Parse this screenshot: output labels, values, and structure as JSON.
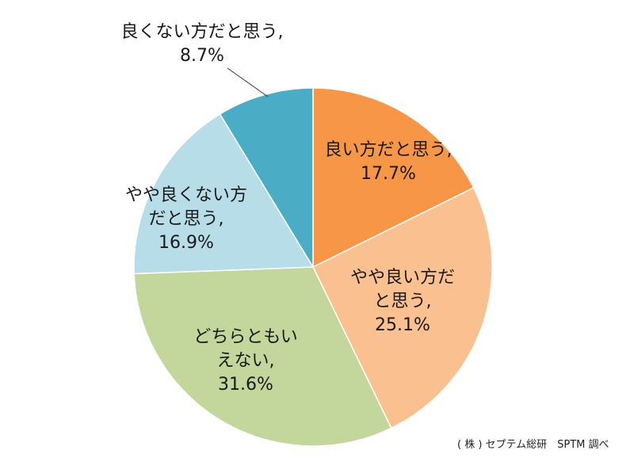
{
  "chart_data": {
    "type": "pie",
    "start_angle_deg": 0,
    "direction": "clockwise",
    "slices": [
      {
        "label": "良い方だと思う",
        "value": 17.7,
        "display": "17.7%",
        "color": "#f79646"
      },
      {
        "label": "やや良い方だと思う",
        "value": 25.1,
        "display": "25.1%",
        "color": "#fac090"
      },
      {
        "label": "どちらともいえない",
        "value": 31.6,
        "display": "31.6%",
        "color": "#c3d69b"
      },
      {
        "label": "やや良くない方だと思う",
        "value": 16.9,
        "display": "16.9%",
        "color": "#b7dde8"
      },
      {
        "label": "良くない方だと思う",
        "value": 8.7,
        "display": "8.7%",
        "color": "#4bacc6"
      }
    ],
    "label_lines": [
      [
        "良い方だと思う,",
        "17.7%"
      ],
      [
        "やや良い方だ",
        "と思う,",
        "25.1%"
      ],
      [
        "どちらともい",
        "えない,",
        "31.6%"
      ],
      [
        "やや良くない方",
        "だと思う,",
        "16.9%"
      ],
      [
        "良くない方だと思う,",
        "8.7%"
      ]
    ]
  },
  "source_note": "( 株 ) セプテム総研　SPTM 調べ"
}
